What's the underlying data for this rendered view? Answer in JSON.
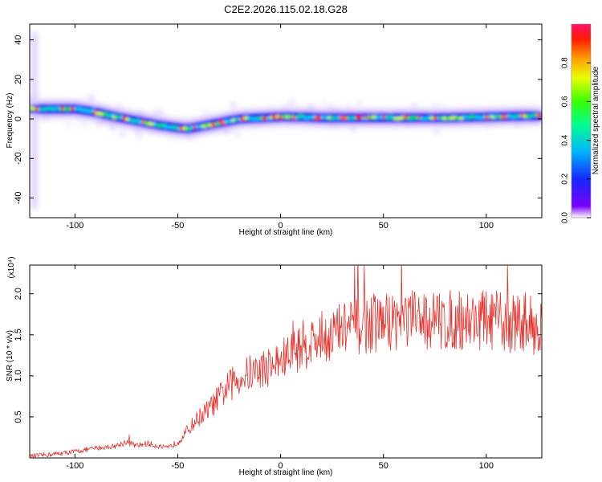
{
  "figure_title": "C2E2.2026.115.02.18.G28",
  "chart_data": [
    {
      "type": "heatmap",
      "xlabel": "Height of straight line (km)",
      "ylabel": "Frequency (Hz)",
      "xlim": [
        -122,
        127
      ],
      "ylim": [
        -50,
        48
      ],
      "xticks": [
        "-100",
        "-50",
        "0",
        "50",
        "100"
      ],
      "yticks": [
        "40",
        "20",
        "0",
        "-20",
        "-40"
      ],
      "colorbar": {
        "label": "Normalized spectral amplitude",
        "range": [
          0.0,
          1.0
        ],
        "ticks": [
          "0.0",
          "0.2",
          "0.4",
          "0.6",
          "0.8"
        ]
      },
      "ridge": {
        "x": [
          -120,
          -100,
          -90,
          -80,
          -70,
          -60,
          -50,
          -45,
          -40,
          -35,
          -30,
          -25,
          -20,
          -10,
          0,
          10,
          20,
          40,
          60,
          80,
          100,
          120,
          127
        ],
        "y": [
          5,
          5,
          3.5,
          1,
          -1,
          -3,
          -4.5,
          -5,
          -4,
          -3,
          -2,
          -1,
          0,
          0.5,
          1,
          1,
          0.5,
          0.5,
          0.5,
          0.5,
          1,
          1.5,
          1.5
        ]
      }
    },
    {
      "type": "line",
      "xlabel": "Height of straight line (km)",
      "ylabel": "SNR (10 * v/v)",
      "scale_label": "(x10⁴)",
      "xlim": [
        -122,
        127
      ],
      "ylim": [
        0,
        2.35
      ],
      "xticks": [
        "-100",
        "-50",
        "0",
        "50",
        "100"
      ],
      "yticks": [
        "2.0",
        "1.5",
        "1.0",
        "0.5"
      ],
      "series": [
        {
          "color": "#e8312c",
          "x": [
            -122,
            -110,
            -100,
            -90,
            -80,
            -75,
            -70,
            -65,
            -60,
            -55,
            -50,
            -45,
            -40,
            -35,
            -30,
            -25,
            -20,
            -15,
            -10,
            -5,
            0,
            5,
            10,
            15,
            20,
            25,
            30,
            40,
            50,
            60,
            70,
            80,
            90,
            100,
            110,
            120,
            127
          ],
          "y": [
            0.02,
            0.05,
            0.08,
            0.12,
            0.15,
            0.2,
            0.15,
            0.18,
            0.15,
            0.12,
            0.2,
            0.35,
            0.5,
            0.6,
            0.75,
            0.9,
            1.0,
            1.05,
            1.1,
            1.15,
            1.2,
            1.3,
            1.4,
            1.45,
            1.5,
            1.55,
            1.6,
            1.65,
            1.7,
            1.72,
            1.72,
            1.7,
            1.72,
            1.72,
            1.68,
            1.7,
            1.6
          ]
        }
      ]
    }
  ]
}
